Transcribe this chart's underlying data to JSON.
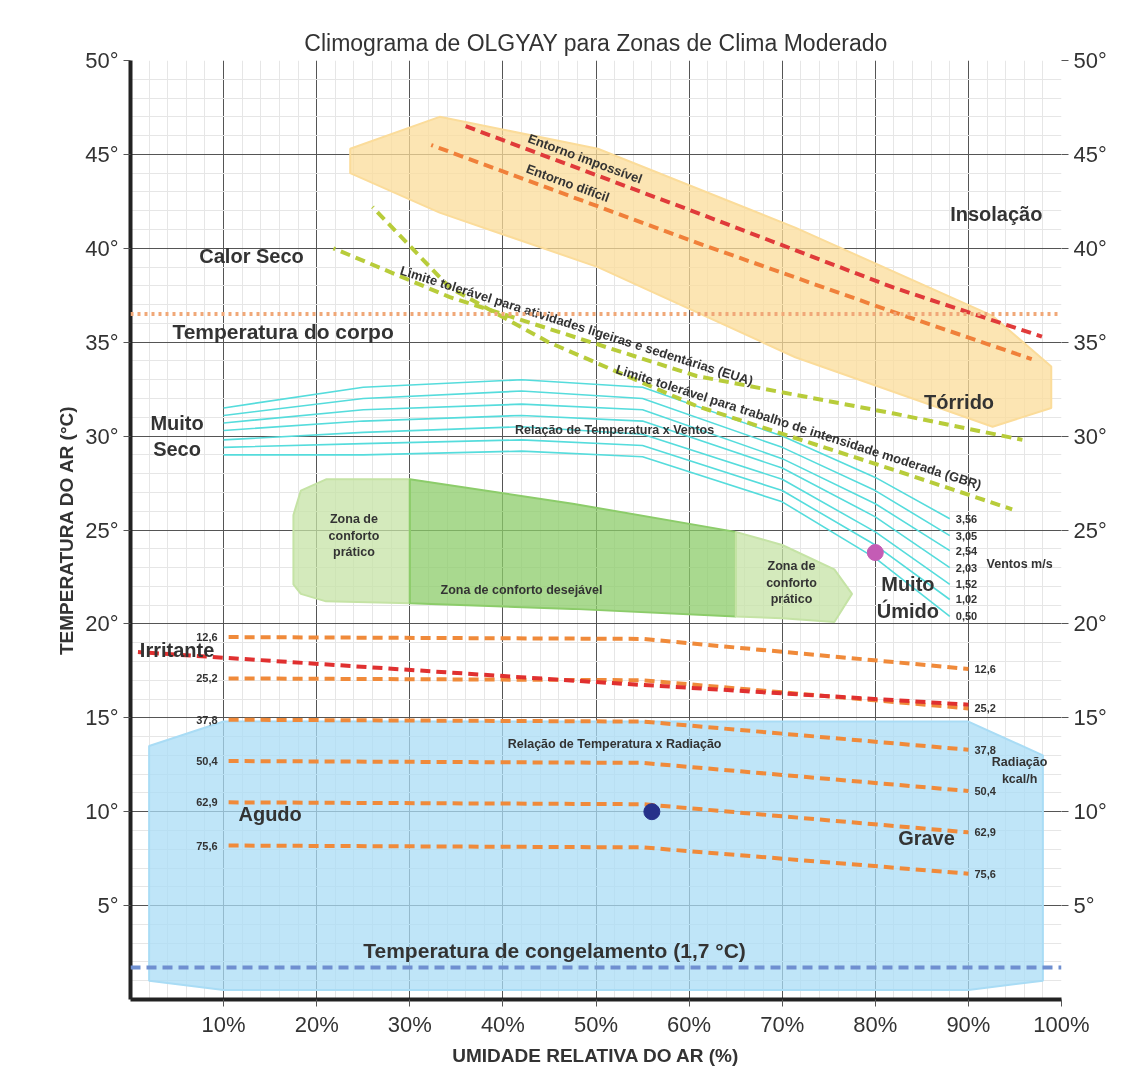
{
  "chart_data": {
    "type": "line",
    "title": "Climograma de OLGYAY para Zonas de Clima Moderado",
    "xlabel": "UMIDADE RELATIVA DO AR (%)",
    "ylabel": "TEMPERATURA DO AR (°C)",
    "xlim": [
      0,
      100
    ],
    "ylim": [
      0,
      50
    ],
    "y2lim": [
      0,
      50
    ],
    "xticks": [
      {
        "value": 10,
        "label": "10%"
      },
      {
        "value": 20,
        "label": "20%"
      },
      {
        "value": 30,
        "label": "30%"
      },
      {
        "value": 40,
        "label": "40%"
      },
      {
        "value": 50,
        "label": "50%"
      },
      {
        "value": 60,
        "label": "60%"
      },
      {
        "value": 70,
        "label": "70%"
      },
      {
        "value": 80,
        "label": "80%"
      },
      {
        "value": 90,
        "label": "90%"
      },
      {
        "value": 100,
        "label": "100%"
      }
    ],
    "yticks": [
      {
        "value": 5,
        "label": "5°"
      },
      {
        "value": 10,
        "label": "10°"
      },
      {
        "value": 15,
        "label": "15°"
      },
      {
        "value": 20,
        "label": "20°"
      },
      {
        "value": 25,
        "label": "25°"
      },
      {
        "value": 30,
        "label": "30°"
      },
      {
        "value": 35,
        "label": "35°"
      },
      {
        "value": 40,
        "label": "40°"
      },
      {
        "value": 45,
        "label": "45°"
      },
      {
        "value": 50,
        "label": "50°"
      }
    ],
    "y2ticks": [
      {
        "value": 5,
        "label": "5°"
      },
      {
        "value": 10,
        "label": "10°"
      },
      {
        "value": 15,
        "label": "15°"
      },
      {
        "value": 20,
        "label": "20°"
      },
      {
        "value": 25,
        "label": "25°"
      },
      {
        "value": 30,
        "label": "30°"
      },
      {
        "value": 35,
        "label": "35°"
      },
      {
        "value": 40,
        "label": "40°"
      },
      {
        "value": 45,
        "label": "45°"
      },
      {
        "value": 50,
        "label": "50°"
      }
    ],
    "grid": true,
    "series": [
      {
        "type": "area",
        "color": "#fbdc9a",
        "x": [
          23.6,
          33.2,
          50.2,
          71.4,
          92.6,
          98.9,
          98.9,
          92.6,
          71.4,
          50.2,
          33.2,
          23.6
        ],
        "values": [
          45.3,
          47.0,
          45.3,
          41.1,
          36.4,
          33.7,
          31.5,
          30.5,
          34.2,
          39.0,
          41.9,
          44.0
        ]
      },
      {
        "type": "area",
        "color": "#a9dcf5",
        "x": [
          2,
          10,
          50,
          90,
          98,
          98,
          90,
          50,
          10,
          2
        ],
        "values": [
          13.5,
          14.8,
          14.8,
          14.8,
          13.0,
          1.0,
          0.5,
          0.5,
          0.5,
          1.0
        ]
      },
      {
        "type": "area",
        "color": "#c5e3a5",
        "x": [
          17.5,
          18.3,
          21.0,
          30,
          30,
          21.0,
          18.3,
          17.5
        ],
        "values": [
          25.8,
          27.1,
          27.7,
          27.7,
          21.1,
          21.2,
          21.6,
          22.1
        ]
      },
      {
        "type": "area",
        "color": "#8ccc6a",
        "x": [
          30,
          47.5,
          65,
          65,
          47.5,
          30
        ],
        "values": [
          27.7,
          26.4,
          24.9,
          20.4,
          20.8,
          21.1
        ]
      },
      {
        "type": "area",
        "color": "#c5e3a5",
        "x": [
          65,
          70,
          75.6,
          77.5,
          75.6,
          70,
          65
        ],
        "values": [
          24.9,
          24.2,
          22.9,
          21.6,
          20.1,
          20.3,
          20.4
        ]
      },
      {
        "name": "0,50",
        "color": "#55dcdc",
        "line_style": "solid",
        "x": [
          10,
          25,
          42,
          55,
          70,
          80,
          88
        ],
        "values": [
          29.0,
          29.0,
          29.2,
          28.9,
          26.5,
          23.5,
          20.4
        ]
      },
      {
        "name": "1,02",
        "color": "#55dcdc",
        "line_style": "solid",
        "x": [
          10,
          25,
          42,
          55,
          70,
          80,
          88
        ],
        "values": [
          29.4,
          29.6,
          29.8,
          29.5,
          27.1,
          24.2,
          21.3
        ]
      },
      {
        "name": "1,52",
        "color": "#55dcdc",
        "line_style": "solid",
        "x": [
          10,
          25,
          42,
          55,
          70,
          80,
          88
        ],
        "values": [
          29.8,
          30.2,
          30.5,
          30.1,
          27.7,
          24.9,
          22.1
        ]
      },
      {
        "name": "2,03",
        "color": "#55dcdc",
        "line_style": "solid",
        "x": [
          10,
          25,
          42,
          55,
          70,
          80,
          88
        ],
        "values": [
          30.3,
          30.8,
          31.1,
          30.8,
          28.3,
          25.7,
          23.0
        ]
      },
      {
        "name": "2,54",
        "color": "#55dcdc",
        "line_style": "solid",
        "x": [
          10,
          25,
          42,
          55,
          70,
          80,
          88
        ],
        "values": [
          30.7,
          31.4,
          31.7,
          31.4,
          28.8,
          26.4,
          23.9
        ]
      },
      {
        "name": "3,05",
        "color": "#55dcdc",
        "line_style": "solid",
        "x": [
          10,
          25,
          42,
          55,
          70,
          80,
          88
        ],
        "values": [
          31.1,
          32.0,
          32.4,
          32.0,
          29.4,
          27.1,
          24.7
        ]
      },
      {
        "name": "3,56",
        "color": "#55dcdc",
        "line_style": "solid",
        "x": [
          10,
          25,
          42,
          55,
          70,
          80,
          88
        ],
        "values": [
          31.5,
          32.6,
          33.0,
          32.6,
          30.0,
          27.8,
          25.6
        ]
      },
      {
        "name": "Limite tolerável para atividades ligeiras e sedentárias (EUA)",
        "color": "#b8cc3a",
        "line_style": "dashed",
        "x": [
          21.8,
          34.3,
          60.8,
          82,
          95.8
        ],
        "values": [
          40.0,
          37.4,
          33.2,
          31.2,
          29.8
        ]
      },
      {
        "name": "Limite tolerável para trabalho de intensidade moderada (GBR)",
        "color": "#b8cc3a",
        "line_style": "dashed",
        "x": [
          26,
          34.3,
          44.9,
          60.8,
          82,
          94.7
        ],
        "values": [
          42.2,
          37.9,
          35.0,
          31.6,
          28.2,
          26.1
        ]
      },
      {
        "name": "Entorno difícil",
        "color": "#f0803a",
        "line_style": "dashed",
        "x": [
          32.3,
          60.8,
          82,
          96.8
        ],
        "values": [
          45.5,
          40.3,
          36.6,
          34.1
        ]
      },
      {
        "name": "Entorno impossível",
        "color": "#e03a3a",
        "line_style": "dashed",
        "x": [
          36,
          60.8,
          82,
          97.9
        ],
        "values": [
          46.5,
          41.9,
          37.9,
          35.3
        ]
      },
      {
        "name": "12,6",
        "color": "#f08a3a",
        "line_style": "dashed",
        "x": [
          10,
          55,
          90
        ],
        "values": [
          19.3,
          19.2,
          17.6
        ]
      },
      {
        "name": "25,2",
        "color": "#f08a3a",
        "line_style": "dashed",
        "x": [
          10,
          55,
          90
        ],
        "values": [
          17.1,
          17.0,
          15.5
        ]
      },
      {
        "name": "37,8",
        "color": "#f08a3a",
        "line_style": "dashed",
        "x": [
          10,
          55,
          90
        ],
        "values": [
          14.9,
          14.8,
          13.3
        ]
      },
      {
        "name": "50,4",
        "color": "#f08a3a",
        "line_style": "dashed",
        "x": [
          10,
          55,
          90
        ],
        "values": [
          12.7,
          12.6,
          11.1
        ]
      },
      {
        "name": "62,9",
        "color": "#f08a3a",
        "line_style": "dashed",
        "x": [
          10,
          55,
          90
        ],
        "values": [
          10.5,
          10.4,
          8.9
        ]
      },
      {
        "name": "75,6",
        "color": "#f08a3a",
        "line_style": "dashed",
        "x": [
          10,
          55,
          90
        ],
        "values": [
          8.2,
          8.1,
          6.7
        ]
      },
      {
        "color": "#e03030",
        "line_style": "dashed",
        "x": [
          0.8,
          50,
          90
        ],
        "values": [
          18.5,
          16.9,
          15.7
        ]
      },
      {
        "type": "scatter",
        "color": "#c45cb5",
        "x": [
          80
        ],
        "values": [
          23.8
        ]
      },
      {
        "type": "scatter",
        "color": "#26318a",
        "x": [
          56
        ],
        "values": [
          10.0
        ]
      }
    ],
    "ref_lines": [
      {
        "axis": "y",
        "value": 36.5,
        "label": "Temperatura do corpo",
        "color": "#f0a878",
        "line_style": "dotted"
      },
      {
        "axis": "y",
        "value": 1.7,
        "label": "Temperatura de congelamento (1,7 °C)",
        "color": "#6f8fd0",
        "line_style": "dashed"
      }
    ],
    "annotations": [
      "Calor Seco",
      "Muito\nSeco",
      "Relação de Temperatura x Ventos",
      "Zona de\nconforto\nprático",
      "Zona de conforto desejável",
      "Zona de\nconforto\nprático",
      "Muito\nÚmido",
      "Ventos m/s",
      "Irritante",
      "Relação de Temperatura x Radiação",
      "Radiação\nkcal/h",
      "Agudo",
      "Grave",
      "Tórrido",
      "Insolação"
    ]
  }
}
